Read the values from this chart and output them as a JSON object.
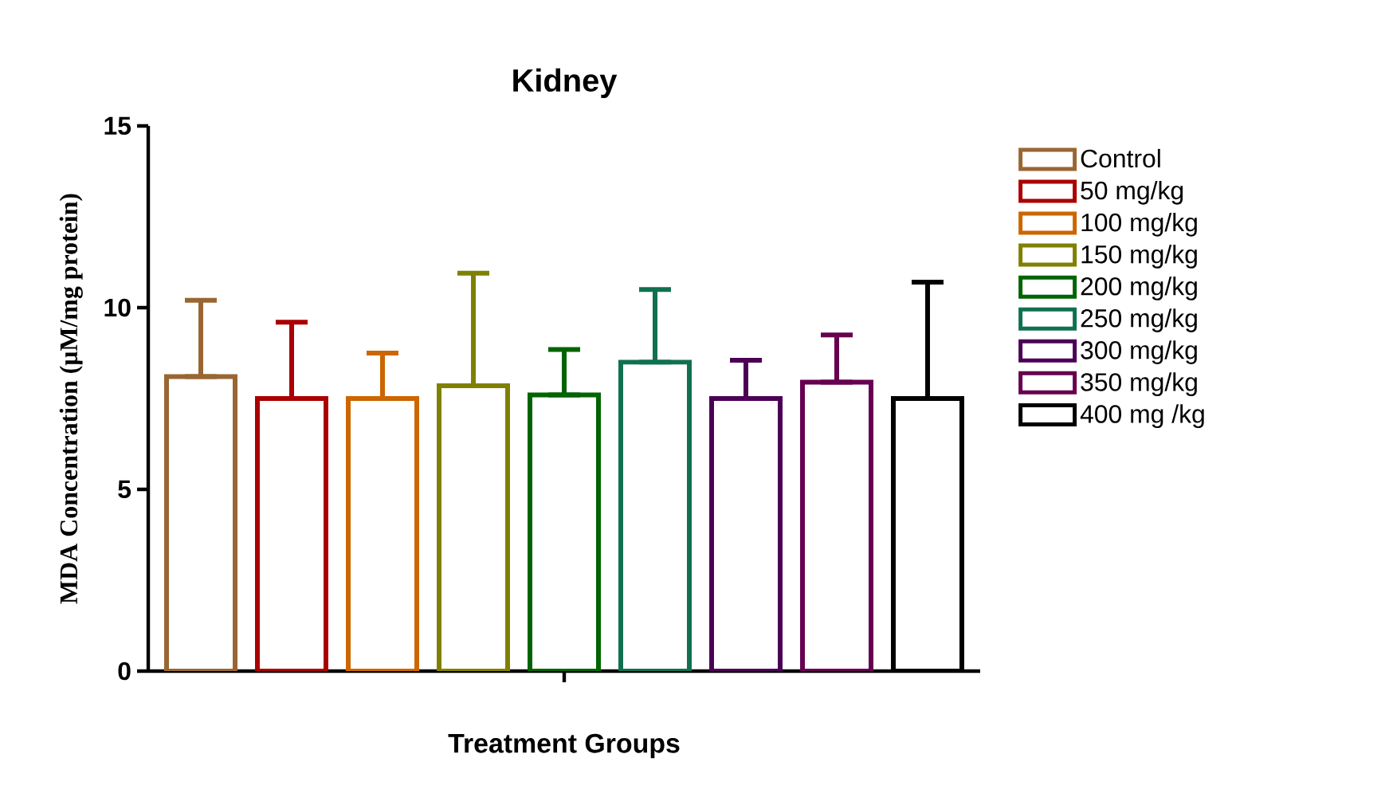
{
  "chart_data": {
    "type": "bar",
    "title": "Kidney",
    "xlabel": "Treatment Groups",
    "ylabel": "MDA Concentration (μM/mg protein)",
    "categories": [
      null
    ],
    "ylim": [
      0,
      15
    ],
    "yticks": [
      0,
      5,
      10,
      15
    ],
    "legend": "right",
    "grid": false,
    "series": [
      {
        "name": "Control",
        "color": "#996633",
        "values": [
          8.1
        ],
        "errors": [
          [
            8.1,
            10.2
          ]
        ]
      },
      {
        "name": "50 mg/kg",
        "color": "#aa0000",
        "values": [
          7.5
        ],
        "errors": [
          [
            7.5,
            9.6
          ]
        ]
      },
      {
        "name": "100 mg/kg",
        "color": "#cc6600",
        "values": [
          7.5
        ],
        "errors": [
          [
            7.5,
            8.75
          ]
        ]
      },
      {
        "name": "150 mg/kg",
        "color": "#808000",
        "values": [
          7.85
        ],
        "errors": [
          [
            7.85,
            10.95
          ]
        ]
      },
      {
        "name": "200 mg/kg",
        "color": "#006400",
        "values": [
          7.6
        ],
        "errors": [
          [
            7.6,
            8.85
          ]
        ]
      },
      {
        "name": "250 mg/kg",
        "color": "#107050",
        "values": [
          8.5
        ],
        "errors": [
          [
            8.5,
            10.5
          ]
        ]
      },
      {
        "name": "300 mg/kg",
        "color": "#4b0055",
        "values": [
          7.5
        ],
        "errors": [
          [
            7.5,
            8.55
          ]
        ]
      },
      {
        "name": "350 mg/kg",
        "color": "#660050",
        "values": [
          7.95
        ],
        "errors": [
          [
            7.95,
            9.25
          ]
        ]
      },
      {
        "name": "400 mg /kg",
        "color": "#000000",
        "values": [
          7.5
        ],
        "errors": [
          [
            7.5,
            10.7
          ]
        ]
      }
    ]
  }
}
